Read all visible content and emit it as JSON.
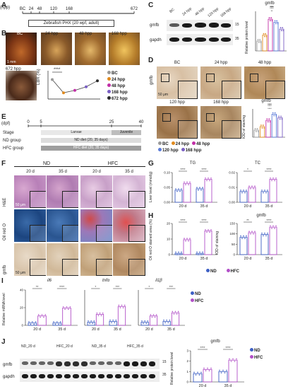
{
  "panels": {
    "A": "A",
    "B": "B",
    "C": "C",
    "D": "D",
    "E": "E",
    "F": "F",
    "G": "G",
    "H": "H",
    "I": "I",
    "J": "J"
  },
  "panelA": {
    "ticks": [
      "BC",
      "24",
      "48",
      "120",
      "168",
      "672"
    ],
    "unit": "(hpp)",
    "caption": "Zebrafish PHX (20 wpf, adult)"
  },
  "panelB": {
    "photo_labels": [
      "BC",
      "24 hpp",
      "48 hpp",
      "168 hpp",
      "672 hpp"
    ],
    "scale": "1 mm",
    "ylabel": "LBR (%)",
    "sig": "****",
    "legend": [
      "BC",
      "24 hpp",
      "48 hpp",
      "168 hpp",
      "672 hpp"
    ],
    "legend_colors": [
      "#999999",
      "#e08a1e",
      "#c22fa7",
      "#7a5fc4",
      "#2b2b2b"
    ]
  },
  "panelC": {
    "lanes": [
      "BC",
      "24 hpp",
      "48 hpp",
      "120 hpp",
      "168 hpp"
    ],
    "rows": [
      "gmfb",
      "gapdh"
    ],
    "kda": [
      "15",
      "35"
    ],
    "chart_title": "gmfb",
    "ylabel": "Relative protein level",
    "sig": [
      "***",
      "****",
      "****",
      "****",
      "**"
    ]
  },
  "panelD": {
    "side_label": "gmfb",
    "images": [
      "BC",
      "24 hpp",
      "48 hpp",
      "120 hpp",
      "168 hpp"
    ],
    "scale": "50 μm",
    "chart_title": "gmfb",
    "ylabel": "IOD of staining",
    "sig": [
      "****",
      "****",
      "****",
      "****"
    ],
    "legend": [
      "BC",
      "24 hpp",
      "48 hpp",
      "120 hpp",
      "168 hpp"
    ],
    "legend_colors": [
      "#999999",
      "#e08a1e",
      "#c22fa7",
      "#5a7bd8",
      "#7a5fc4"
    ]
  },
  "panelE": {
    "unit": "(dpf)",
    "ticks": [
      "0",
      "5",
      "25",
      "40"
    ],
    "stage_label": "Stage",
    "stages": [
      "Larvae",
      "Juvenile"
    ],
    "groups": [
      {
        "name": "ND group",
        "bar": "ND diet (20, 35 days)"
      },
      {
        "name": "HFC group",
        "bar": "HFC diet (20, 35 days)"
      }
    ]
  },
  "panelF": {
    "groups": [
      "ND",
      "HFC"
    ],
    "days": [
      "20 d",
      "35 d",
      "20 d",
      "35 d"
    ],
    "rows": [
      "H&E",
      "Oil red O",
      "gmfb"
    ],
    "scale": "50 μm"
  },
  "panelG": {
    "ylabel": "Liver level (mmol/g)",
    "charts": [
      {
        "title": "TG",
        "sig": [
          "****",
          "****"
        ],
        "ticks": [
          "0.00",
          "0.05",
          "0.10"
        ]
      },
      {
        "title": "TC",
        "sig": [
          "*",
          "****"
        ],
        "ticks": [
          "0.00",
          "0.01",
          "0.02"
        ]
      }
    ],
    "xcats": [
      "20 d",
      "35 d"
    ]
  },
  "panelH": {
    "charts": [
      {
        "title": "",
        "ylabel": "Oil red O stained area (%)",
        "sig": [
          "****",
          "****"
        ],
        "ticks": [
          "0",
          "10",
          "20"
        ]
      },
      {
        "title": "gmfb",
        "ylabel": "IOD of staining",
        "sig": [
          "**",
          "****"
        ],
        "ticks": [
          "0",
          "50",
          "100",
          "150"
        ]
      }
    ],
    "xcats": [
      "20 d",
      "35 d"
    ],
    "legend": [
      "ND",
      "HFC"
    ],
    "legend_colors": [
      "#3d5fc4",
      "#b14fc7"
    ]
  },
  "panelI": {
    "ylabel": "Relative mRNA level",
    "genes": [
      "il6",
      "tnfα",
      "il1β"
    ],
    "sig": [
      [
        "**",
        "****"
      ],
      [
        "*",
        "***"
      ],
      [
        "*",
        "***"
      ]
    ],
    "xcats": [
      "20 d",
      "35 d"
    ],
    "ticks": [
      "0",
      "20",
      "40"
    ],
    "legend": [
      "ND",
      "HFC"
    ],
    "legend_colors": [
      "#3d5fc4",
      "#b14fc7"
    ]
  },
  "panelJ": {
    "lanes": [
      "ND_20 d",
      "HFC_20 d",
      "ND_35 d",
      "HFC_35 d"
    ],
    "rows": [
      "gmfb",
      "gapdh"
    ],
    "kda": [
      "15",
      "35"
    ],
    "chart_title": "gmfb",
    "ylabel": "Relative protein level",
    "sig": [
      "****",
      "****"
    ],
    "xcats": [
      "20 d",
      "35 d"
    ],
    "ticks": [
      "0",
      "1",
      "2",
      "3"
    ],
    "legend": [
      "ND",
      "HFC"
    ],
    "legend_colors": [
      "#3d5fc4",
      "#b14fc7"
    ]
  },
  "chart_data": [
    {
      "type": "line",
      "title": "",
      "ylabel": "LBR (%)",
      "x": [
        "BC",
        "24 hpp",
        "48 hpp",
        "168 hpp",
        "672 hpp"
      ],
      "series": [
        {
          "values": [
            4.0,
            2.9,
            3.1,
            3.4,
            3.9
          ]
        }
      ]
    },
    {
      "type": "bar",
      "title": "gmfb",
      "ylabel": "Relative protein level",
      "categories": [
        "BC",
        "24 hpp",
        "48 hpp",
        "120 hpp",
        "168 hpp"
      ],
      "values": [
        1.0,
        1.6,
        3.2,
        2.9,
        2.2
      ],
      "colors": [
        "#999999",
        "#e08a1e",
        "#c22fa7",
        "#5a7bd8",
        "#7a5fc4"
      ],
      "ylim": [
        0,
        4
      ]
    },
    {
      "type": "bar",
      "title": "gmfb",
      "ylabel": "IOD of staining",
      "categories": [
        "BC",
        "24 hpp",
        "48 hpp",
        "120 hpp",
        "168 hpp"
      ],
      "values": [
        40,
        60,
        95,
        130,
        110
      ],
      "colors": [
        "#999999",
        "#e08a1e",
        "#c22fa7",
        "#5a7bd8",
        "#7a5fc4"
      ],
      "ylim": [
        0,
        160
      ]
    },
    {
      "type": "bar",
      "title": "TG",
      "categories": [
        "20 d",
        "35 d"
      ],
      "series": [
        {
          "values": [
            0.045,
            0.05
          ]
        },
        {
          "values": [
            0.07,
            0.085
          ]
        }
      ],
      "ylim": [
        0,
        0.11
      ]
    },
    {
      "type": "bar",
      "title": "TC",
      "categories": [
        "20 d",
        "35 d"
      ],
      "series": [
        {
          "values": [
            0.008,
            0.008
          ]
        },
        {
          "values": [
            0.011,
            0.017
          ]
        }
      ],
      "ylim": [
        0,
        0.022
      ]
    },
    {
      "type": "bar",
      "title": "",
      "ylabel": "Oil red O stained area (%)",
      "categories": [
        "20 d",
        "35 d"
      ],
      "series": [
        {
          "name": "ND",
          "values": [
            1,
            1
          ]
        },
        {
          "name": "HFC",
          "values": [
            12,
            19
          ]
        }
      ],
      "ylim": [
        0,
        25
      ]
    },
    {
      "type": "bar",
      "title": "gmfb",
      "ylabel": "IOD of staining",
      "categories": [
        "20 d",
        "35 d"
      ],
      "series": [
        {
          "name": "ND",
          "values": [
            95,
            110
          ]
        },
        {
          "name": "HFC",
          "values": [
            120,
            150
          ]
        }
      ],
      "ylim": [
        0,
        170
      ]
    },
    {
      "type": "bar",
      "title": "il6",
      "ylabel": "Relative mRNA level",
      "categories": [
        "20 d",
        "35 d"
      ],
      "series": [
        {
          "name": "ND",
          "values": [
            3,
            3
          ]
        },
        {
          "name": "HFC",
          "values": [
            12,
            22
          ]
        }
      ],
      "ylim": [
        0,
        45
      ]
    },
    {
      "type": "bar",
      "title": "tnfα",
      "categories": [
        "20 d",
        "35 d"
      ],
      "series": [
        {
          "name": "ND",
          "values": [
            4,
            5
          ]
        },
        {
          "name": "HFC",
          "values": [
            14,
            24
          ]
        }
      ],
      "ylim": [
        0,
        45
      ]
    },
    {
      "type": "bar",
      "title": "il1β",
      "categories": [
        "20 d",
        "35 d"
      ],
      "series": [
        {
          "name": "ND",
          "values": [
            4,
            5
          ]
        },
        {
          "name": "HFC",
          "values": [
            12,
            16
          ]
        }
      ],
      "ylim": [
        0,
        45
      ]
    },
    {
      "type": "bar",
      "title": "gmfb",
      "ylabel": "Relative protein level",
      "categories": [
        "20 d",
        "35 d"
      ],
      "series": [
        {
          "name": "ND",
          "values": [
            0.8,
            1.0
          ]
        },
        {
          "name": "HFC",
          "values": [
            1.2,
            2.1
          ]
        }
      ],
      "ylim": [
        0,
        3
      ]
    }
  ]
}
